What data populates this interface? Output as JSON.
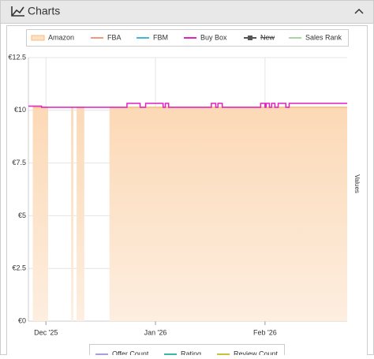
{
  "panel": {
    "title": "Charts"
  },
  "chart_data": {
    "type": "step",
    "axis_title": "Values",
    "xlim": [
      -0.16,
      2.75
    ],
    "xticks": [
      {
        "value": 0,
        "label": "Dec '25"
      },
      {
        "value": 1,
        "label": "Jan '26"
      },
      {
        "value": 2,
        "label": "Feb '26"
      }
    ],
    "ylim": [
      0,
      12.5
    ],
    "yticks": [
      {
        "value": 0,
        "label": "€0"
      },
      {
        "value": 2.5,
        "label": "€2.5"
      },
      {
        "value": 5,
        "label": "€5"
      },
      {
        "value": 7.5,
        "label": "€7.5"
      },
      {
        "value": 10,
        "label": "€10"
      },
      {
        "value": 12.5,
        "label": "€12.5"
      }
    ],
    "grid": true,
    "series": [
      {
        "name": "Amazon",
        "color": "#f9b97a",
        "style": "area",
        "x": [
          -0.12,
          0.02,
          0.12,
          0.23,
          0.25,
          0.27,
          0.28,
          0.35,
          0.45,
          0.58,
          2.75
        ],
        "values": [
          10.14,
          10.14,
          null,
          10.14,
          10.14,
          null,
          10.14,
          10.14,
          null,
          10.14,
          10.14
        ]
      },
      {
        "name": "FBA",
        "color": "#f4977a"
      },
      {
        "name": "FBM",
        "color": "#3fb6d9"
      },
      {
        "name": "Buy Box",
        "color": "#e41fc4",
        "style": "line",
        "x": [
          -0.16,
          -0.04,
          0.74,
          0.86,
          0.91,
          1.07,
          1.09,
          1.12,
          1.51,
          1.55,
          1.57,
          1.61,
          1.96,
          2.0,
          2.01,
          2.04,
          2.06,
          2.09,
          2.12,
          2.19,
          2.22,
          2.75
        ],
        "values": [
          10.2,
          10.14,
          10.33,
          10.14,
          10.33,
          10.14,
          10.33,
          10.14,
          10.33,
          10.14,
          10.33,
          10.14,
          10.33,
          10.14,
          10.33,
          10.14,
          10.33,
          10.14,
          10.33,
          10.14,
          10.33,
          10.33
        ]
      },
      {
        "name": "New",
        "color": "#555555",
        "hidden": true
      },
      {
        "name": "Sales Rank",
        "color": "#a8d8a0"
      }
    ],
    "secondary_legend": [
      {
        "name": "Offer Count",
        "color": "#a99ce0"
      },
      {
        "name": "Rating",
        "color": "#3cb8a6"
      },
      {
        "name": "Review Count",
        "color": "#c8c23a"
      }
    ]
  }
}
